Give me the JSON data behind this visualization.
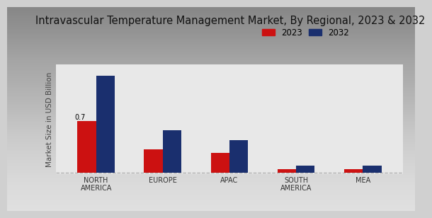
{
  "title": "Intravascular Temperature Management Market, By Regional, 2023 & 2032",
  "ylabel": "Market Size in USD Billion",
  "categories": [
    "NORTH\nAMERICA",
    "EUROPE",
    "APAC",
    "SOUTH\nAMERICA",
    "MEA"
  ],
  "values_2023": [
    0.7,
    0.32,
    0.27,
    0.05,
    0.048
  ],
  "values_2032": [
    1.32,
    0.58,
    0.44,
    0.1,
    0.095
  ],
  "color_2023": "#cc1111",
  "color_2032": "#1a2f6e",
  "annotation_text": "0.7",
  "legend_labels": [
    "2023",
    "2032"
  ],
  "bg_color_top": "#ffffff",
  "bg_color_bottom": "#d8d8d8",
  "bar_width": 0.28,
  "title_fontsize": 10.5,
  "axis_label_fontsize": 7.5,
  "tick_fontsize": 7.0,
  "legend_fontsize": 8.5
}
